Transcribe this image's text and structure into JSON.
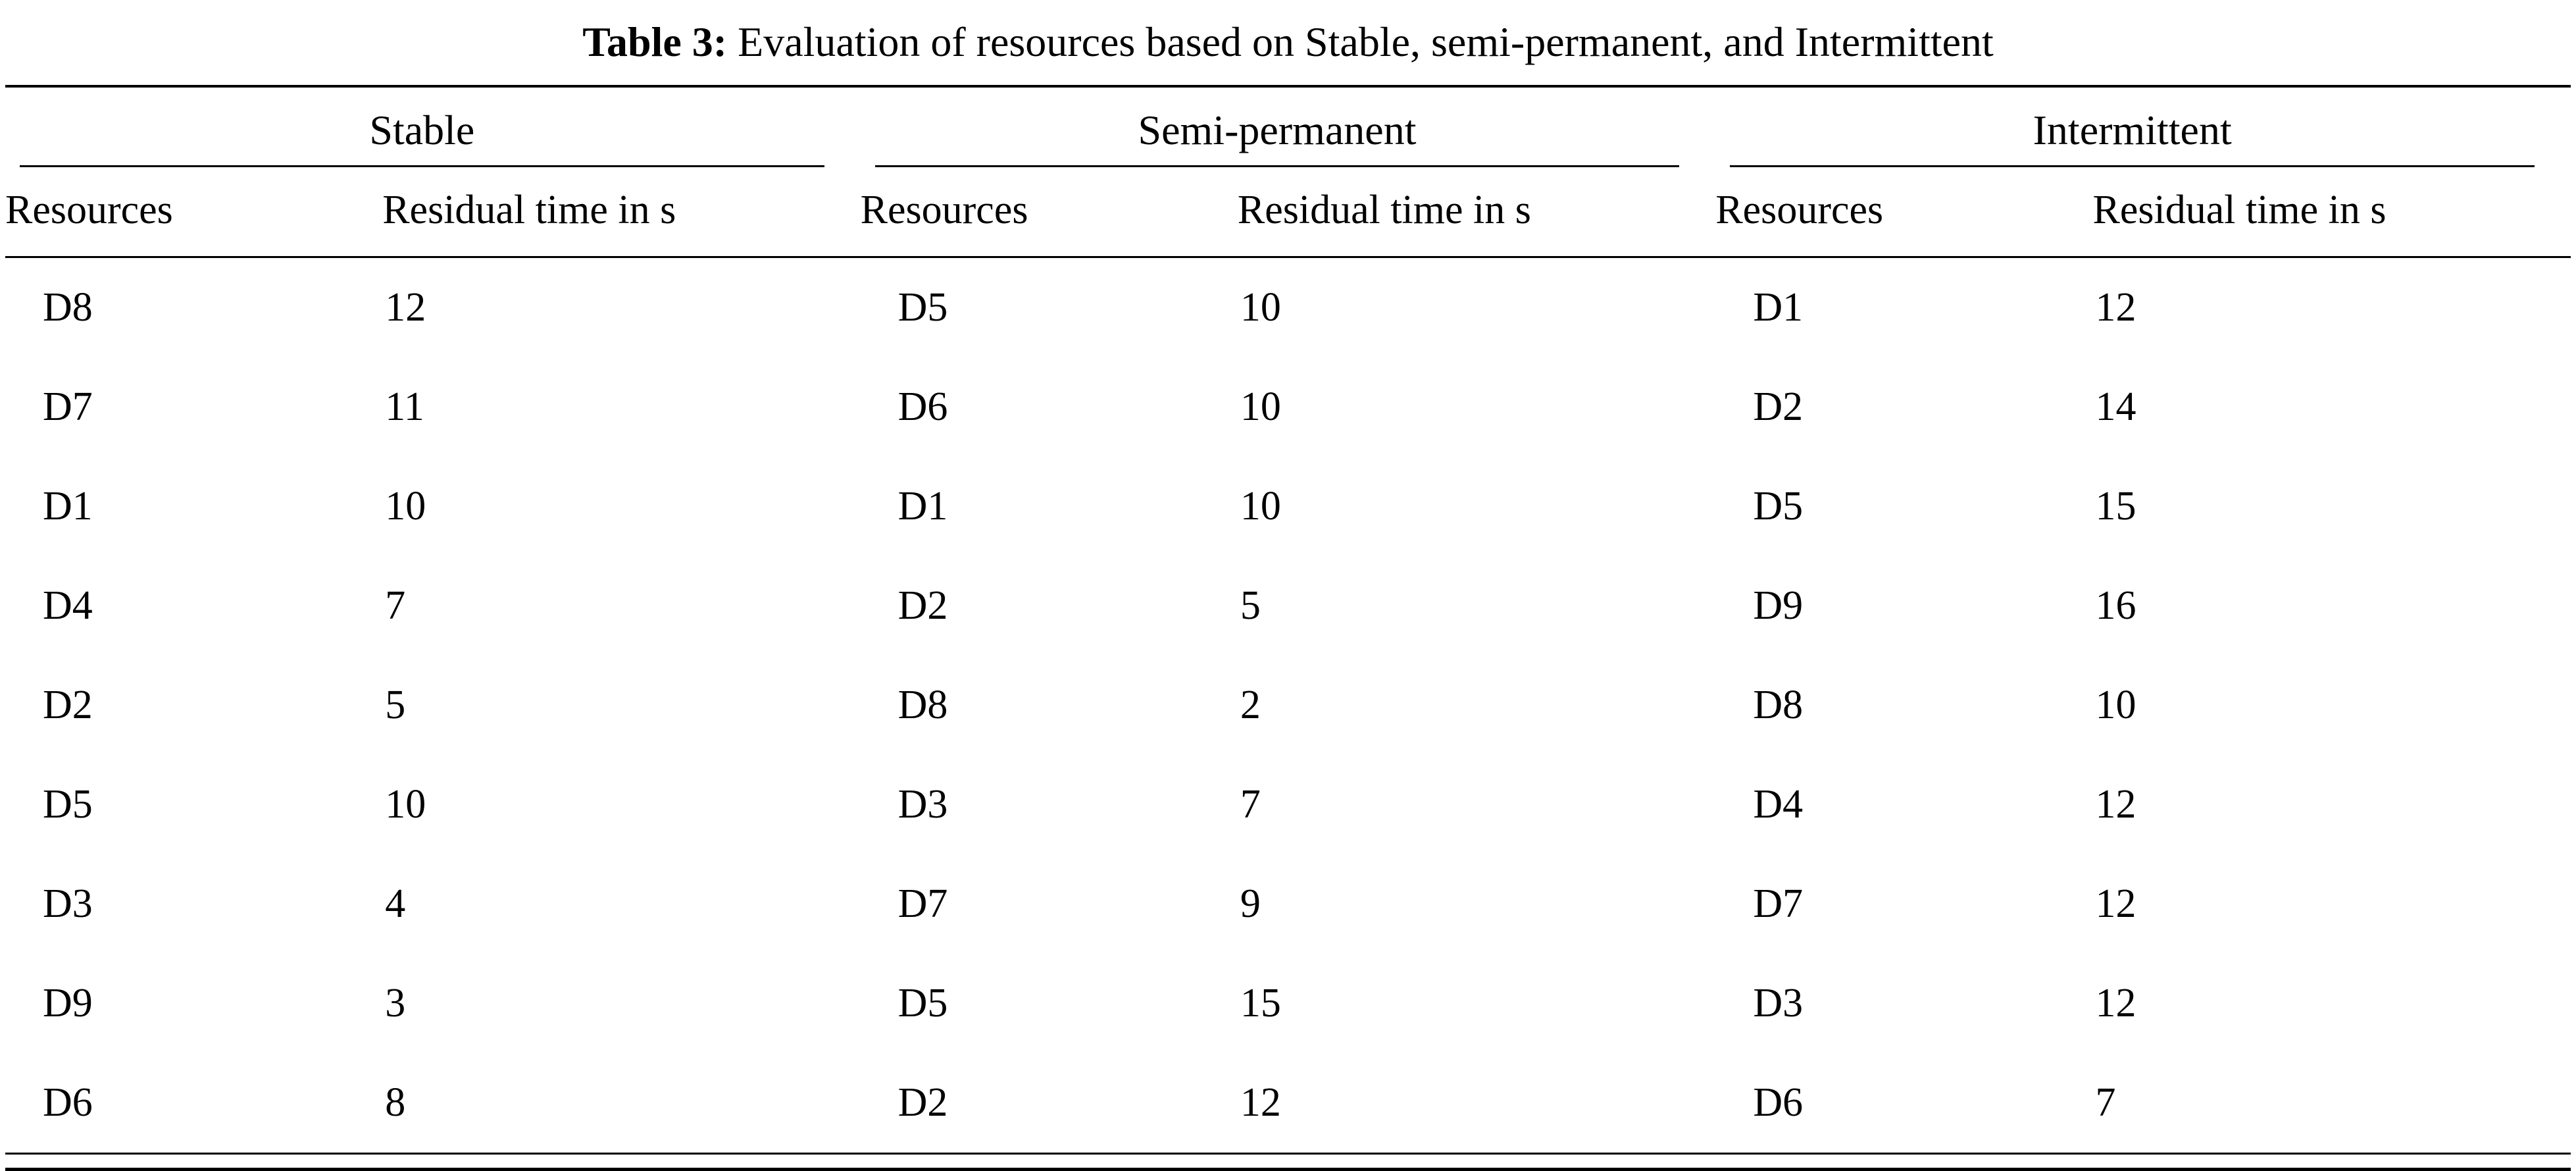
{
  "caption": {
    "label": "Table 3:",
    "text": "Evaluation of resources based on Stable, semi-permanent, and Intermittent"
  },
  "columns": {
    "resource": "Resources",
    "residual": "Residual time in s"
  },
  "groups": [
    {
      "name": "Stable",
      "rows": [
        {
          "resource": "D8",
          "residual": "12"
        },
        {
          "resource": "D7",
          "residual": "11"
        },
        {
          "resource": "D1",
          "residual": "10"
        },
        {
          "resource": "D4",
          "residual": "7"
        },
        {
          "resource": "D2",
          "residual": "5"
        },
        {
          "resource": "D5",
          "residual": "10"
        },
        {
          "resource": "D3",
          "residual": "4"
        },
        {
          "resource": "D9",
          "residual": "3"
        },
        {
          "resource": "D6",
          "residual": "8"
        }
      ]
    },
    {
      "name": "Semi-permanent",
      "rows": [
        {
          "resource": "D5",
          "residual": "10"
        },
        {
          "resource": "D6",
          "residual": "10"
        },
        {
          "resource": "D1",
          "residual": "10"
        },
        {
          "resource": "D2",
          "residual": "5"
        },
        {
          "resource": "D8",
          "residual": "2"
        },
        {
          "resource": "D3",
          "residual": "7"
        },
        {
          "resource": "D7",
          "residual": "9"
        },
        {
          "resource": "D5",
          "residual": "15"
        },
        {
          "resource": "D2",
          "residual": "12"
        }
      ]
    },
    {
      "name": "Intermittent",
      "rows": [
        {
          "resource": "D1",
          "residual": "12"
        },
        {
          "resource": "D2",
          "residual": "14"
        },
        {
          "resource": "D5",
          "residual": "15"
        },
        {
          "resource": "D9",
          "residual": "16"
        },
        {
          "resource": "D8",
          "residual": "10"
        },
        {
          "resource": "D4",
          "residual": "12"
        },
        {
          "resource": "D7",
          "residual": "12"
        },
        {
          "resource": "D3",
          "residual": "12"
        },
        {
          "resource": "D6",
          "residual": "7"
        }
      ]
    }
  ]
}
